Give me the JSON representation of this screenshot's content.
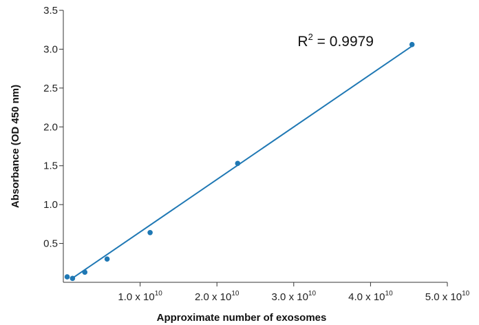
{
  "chart_data": {
    "type": "scatter",
    "xlabel": "Approximate number of exosomes",
    "ylabel": "Absorbance (OD 450 nm)",
    "xlim": [
      0,
      50000000000.0
    ],
    "ylim": [
      0,
      3.5
    ],
    "x_ticks": [
      {
        "value": 10000000000.0,
        "base": "1.0 x 10",
        "exp": "10"
      },
      {
        "value": 20000000000.0,
        "base": "2.0 x 10",
        "exp": "10"
      },
      {
        "value": 30000000000.0,
        "base": "3.0 x 10",
        "exp": "10"
      },
      {
        "value": 40000000000.0,
        "base": "4.0 x 10",
        "exp": "10"
      },
      {
        "value": 50000000000.0,
        "base": "5.0 x 10",
        "exp": "10"
      }
    ],
    "y_ticks": [
      {
        "value": 0.5,
        "label": "0.5"
      },
      {
        "value": 1.0,
        "label": "1.0"
      },
      {
        "value": 1.5,
        "label": "1.5"
      },
      {
        "value": 2.0,
        "label": "2.0"
      },
      {
        "value": 2.5,
        "label": "2.5"
      },
      {
        "value": 3.0,
        "label": "3.0"
      },
      {
        "value": 3.5,
        "label": "3.5"
      }
    ],
    "points": [
      {
        "x": 500000000.0,
        "y": 0.07
      },
      {
        "x": 1200000000.0,
        "y": 0.05
      },
      {
        "x": 2800000000.0,
        "y": 0.13
      },
      {
        "x": 5700000000.0,
        "y": 0.3
      },
      {
        "x": 11300000000.0,
        "y": 0.64
      },
      {
        "x": 22700000000.0,
        "y": 1.53
      },
      {
        "x": 45400000000.0,
        "y": 3.06
      }
    ],
    "fit_line": {
      "x_start": 1000000000.0,
      "y_start": 0.04,
      "x_end": 45400000000.0,
      "y_end": 3.04
    },
    "annotation": {
      "base": "R",
      "exp": "2",
      "rest": " = 0.9979"
    },
    "grid": false,
    "legend": "none",
    "colors": {
      "series": "#1f78b4",
      "axis": "#333333"
    }
  }
}
